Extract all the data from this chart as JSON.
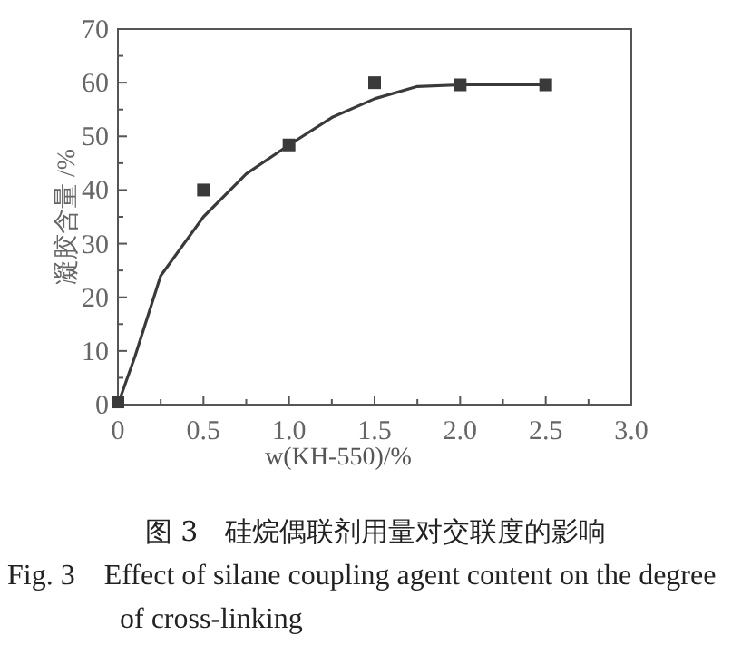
{
  "chart_data": {
    "type": "scatter",
    "xlabel": "w(KH-550)/%",
    "ylabel": "凝胶含量 /%",
    "annotations": [
      "图 3　硅烷偶联剂用量对交联度的影响",
      "Fig. 3　Effect of silane coupling agent content on the degree of cross-linking"
    ],
    "series": [
      {
        "color": "#3a3a3a",
        "marker": "square",
        "x": [
          0,
          0.5,
          1.0,
          1.5,
          2.0,
          2.5
        ],
        "values": [
          0.5,
          40,
          48.4,
          60,
          59.6,
          59.6
        ]
      },
      {
        "type": "line",
        "color": "#3a3a3a",
        "marker": "none",
        "x": [
          0,
          0.1,
          0.25,
          0.5,
          0.75,
          1.0,
          1.25,
          1.5,
          1.75,
          2.0,
          2.5
        ],
        "values": [
          0,
          9,
          24,
          35,
          43,
          48.4,
          53.5,
          57,
          59.3,
          59.6,
          59.6
        ]
      }
    ],
    "xlim": [
      0,
      3.0
    ],
    "ylim": [
      0,
      70
    ],
    "xticks": [
      {
        "value": 0,
        "label": "0"
      },
      {
        "value": 0.25,
        "label": null
      },
      {
        "value": 0.5,
        "label": "0.5"
      },
      {
        "value": 0.75,
        "label": null
      },
      {
        "value": 1.0,
        "label": "1.0"
      },
      {
        "value": 1.25,
        "label": null
      },
      {
        "value": 1.5,
        "label": "1.5"
      },
      {
        "value": 1.75,
        "label": null
      },
      {
        "value": 2.0,
        "label": "2.0"
      },
      {
        "value": 2.25,
        "label": null
      },
      {
        "value": 2.5,
        "label": "2.5"
      },
      {
        "value": 2.75,
        "label": null
      },
      {
        "value": 3.0,
        "label": "3.0"
      }
    ],
    "yticks": [
      {
        "value": 0,
        "label": "0"
      },
      {
        "value": 5,
        "label": null
      },
      10,
      {
        "value": 15,
        "label": null
      },
      20,
      {
        "value": 25,
        "label": null
      },
      30,
      {
        "value": 35,
        "label": null
      },
      40,
      {
        "value": 45,
        "label": null
      },
      50,
      {
        "value": 55,
        "label": null
      },
      60,
      {
        "value": 65,
        "label": null
      },
      70
    ],
    "grid": false
  }
}
